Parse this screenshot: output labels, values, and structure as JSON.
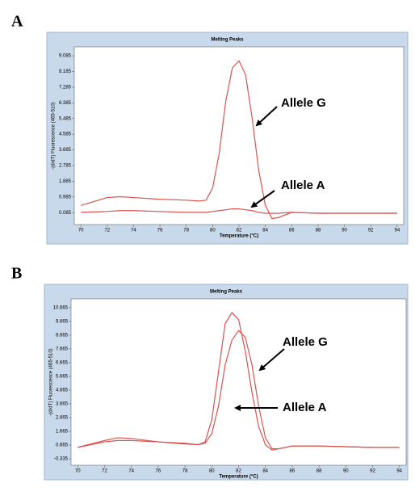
{
  "chart_data": [
    {
      "type": "line",
      "panel": "A",
      "title": "Melting Peaks",
      "x_label": "Temperature (°C)",
      "y_label": "-(d/dT) Fluorescence (465-510)",
      "x": [
        70,
        72,
        73,
        74,
        76,
        78,
        79,
        79.5,
        80,
        80.5,
        81,
        81.5,
        82,
        82.5,
        83,
        83.5,
        84,
        84.5,
        85,
        86,
        88,
        90,
        92,
        94
      ],
      "series": [
        {
          "name": "Allele G",
          "color": "#d9534f",
          "values": [
            0.5,
            0.95,
            1.0,
            0.95,
            0.85,
            0.8,
            0.75,
            0.8,
            1.5,
            3.5,
            6.5,
            8.4,
            8.8,
            8.0,
            5.5,
            2.5,
            0.5,
            -0.25,
            -0.2,
            0.1,
            0.05,
            0.05,
            0.05,
            0.05
          ]
        },
        {
          "name": "Allele A",
          "color": "#d9534f",
          "values": [
            0.1,
            0.15,
            0.2,
            0.2,
            0.15,
            0.1,
            0.1,
            0.1,
            0.15,
            0.2,
            0.25,
            0.3,
            0.3,
            0.25,
            0.2,
            0.1,
            0.05,
            0.05,
            0.05,
            0.1,
            0.05,
            0.05,
            0.05,
            0.05
          ]
        }
      ],
      "xlim": [
        69.5,
        94.5
      ],
      "xticks": [
        70,
        72,
        74,
        76,
        78,
        80,
        82,
        84,
        86,
        88,
        90,
        92,
        94
      ],
      "ylim": [
        -0.6,
        9.6
      ],
      "yticks": [
        9.085,
        8.185,
        7.285,
        6.385,
        5.485,
        4.585,
        3.685,
        2.785,
        1.885,
        0.985,
        0.085
      ]
    },
    {
      "type": "line",
      "panel": "B",
      "title": "Melting Peaks",
      "x_label": "Temperature (°C)",
      "y_label": "-(d/dT) Fluorescence (465-510)",
      "x": [
        70,
        72,
        73,
        74,
        76,
        78,
        79,
        79.5,
        80,
        80.5,
        81,
        81.5,
        82,
        82.5,
        83,
        83.5,
        84,
        84.5,
        85,
        86,
        88,
        90,
        92,
        94
      ],
      "series": [
        {
          "name": "Allele G",
          "color": "#d9534f",
          "values": [
            0.5,
            1.0,
            1.2,
            1.15,
            0.9,
            0.75,
            0.7,
            0.9,
            2.5,
            6,
            9.5,
            10.3,
            9.8,
            7.5,
            4.5,
            2,
            0.7,
            0.3,
            0.4,
            0.6,
            0.6,
            0.55,
            0.5,
            0.5
          ]
        },
        {
          "name": "Allele A",
          "color": "#d9534f",
          "values": [
            0.5,
            0.9,
            1.0,
            1.0,
            0.9,
            0.8,
            0.7,
            0.8,
            1.5,
            3.5,
            6.5,
            8.3,
            9.0,
            8.5,
            6.5,
            3.5,
            1.2,
            0.4,
            0.4,
            0.6,
            0.6,
            0.55,
            0.5,
            0.5
          ]
        }
      ],
      "xlim": [
        69.5,
        94.5
      ],
      "xticks": [
        70,
        72,
        74,
        76,
        78,
        80,
        82,
        84,
        86,
        88,
        90,
        92,
        94
      ],
      "ylim": [
        -0.8,
        11.3
      ],
      "yticks": [
        10.665,
        9.665,
        8.665,
        7.665,
        6.665,
        5.665,
        4.665,
        3.665,
        2.665,
        1.665,
        0.665,
        -0.335
      ]
    }
  ]
}
